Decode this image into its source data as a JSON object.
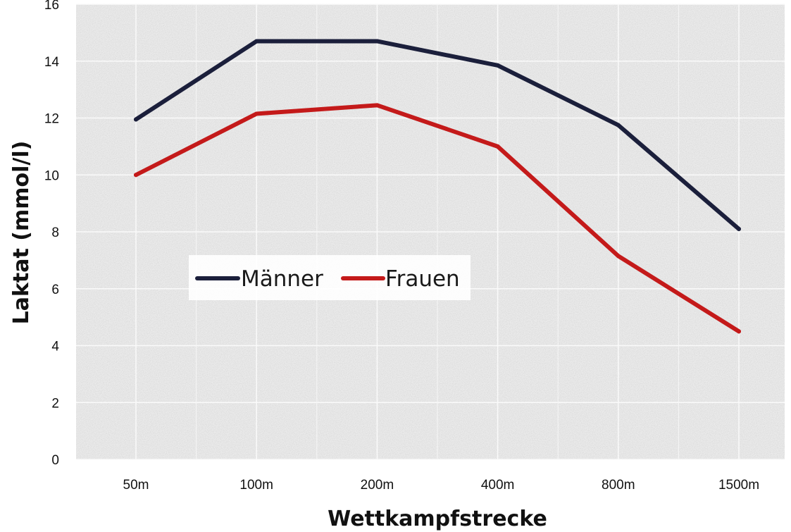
{
  "chart_data": {
    "type": "line",
    "categories": [
      "50m",
      "100m",
      "200m",
      "400m",
      "800m",
      "1500m"
    ],
    "series": [
      {
        "name": "Männer",
        "values": [
          11.95,
          14.7,
          14.7,
          13.85,
          11.75,
          8.1
        ],
        "color": "#1b1f3b"
      },
      {
        "name": "Frauen",
        "values": [
          10.0,
          12.15,
          12.45,
          11.0,
          7.15,
          4.5
        ],
        "color": "#c41a1a"
      }
    ],
    "title": "",
    "xlabel": "Wettkampfstrecke",
    "ylabel": "Laktat (mmol/l)",
    "ylim": [
      0,
      16
    ],
    "yticks": [
      0,
      2,
      4,
      6,
      8,
      10,
      12,
      14,
      16
    ],
    "grid": true,
    "legend": "middle-left"
  }
}
